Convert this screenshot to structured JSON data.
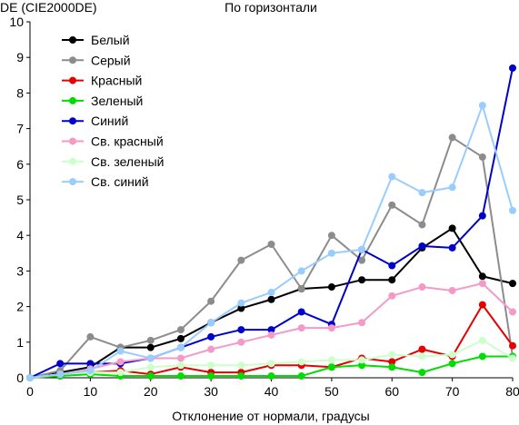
{
  "chart_data": {
    "type": "line",
    "title": "По горизонтали",
    "ylabel": "DE (CIE2000DE)",
    "xlabel": "Отклонение от нормали, градусы",
    "xlim": [
      0,
      80
    ],
    "ylim": [
      0,
      10
    ],
    "xticks": [
      0,
      10,
      20,
      30,
      40,
      50,
      60,
      70,
      80
    ],
    "yticks": [
      0,
      1,
      2,
      3,
      4,
      5,
      6,
      7,
      8,
      9,
      10
    ],
    "grid": false,
    "legend_position": "top-left",
    "x": [
      0,
      5,
      10,
      15,
      20,
      25,
      30,
      35,
      40,
      45,
      50,
      55,
      60,
      65,
      70,
      75,
      80
    ],
    "series": [
      {
        "name": "Белый",
        "color": "#000000",
        "values": [
          0,
          0.15,
          0.3,
          0.85,
          0.85,
          1.1,
          1.55,
          1.95,
          2.2,
          2.5,
          2.55,
          2.75,
          2.75,
          3.65,
          4.2,
          2.85,
          2.65
        ]
      },
      {
        "name": "Серый",
        "color": "#8c8c8c",
        "values": [
          0,
          0.2,
          1.15,
          0.85,
          1.05,
          1.35,
          2.15,
          3.3,
          3.75,
          2.5,
          4.0,
          3.3,
          4.85,
          4.3,
          6.75,
          6.2,
          0.6
        ]
      },
      {
        "name": "Красный",
        "color": "#e60000",
        "values": [
          0,
          0.05,
          0.15,
          0.2,
          0.1,
          0.3,
          0.15,
          0.15,
          0.35,
          0.35,
          0.3,
          0.55,
          0.45,
          0.8,
          0.6,
          2.05,
          0.9
        ]
      },
      {
        "name": "Зеленый",
        "color": "#00dd00",
        "values": [
          0,
          0.05,
          0.1,
          0.05,
          0.05,
          0.05,
          0.05,
          0.05,
          0.05,
          0.05,
          0.3,
          0.35,
          0.3,
          0.15,
          0.4,
          0.6,
          0.6
        ]
      },
      {
        "name": "Синий",
        "color": "#0000cc",
        "values": [
          0,
          0.4,
          0.4,
          0.4,
          0.55,
          0.85,
          1.15,
          1.35,
          1.35,
          1.85,
          1.5,
          3.6,
          3.15,
          3.7,
          3.65,
          4.55,
          8.7
        ]
      },
      {
        "name": "Св. красный",
        "color": "#f39ac8",
        "values": [
          0,
          0.1,
          0.25,
          0.45,
          0.55,
          0.55,
          0.8,
          1.0,
          1.2,
          1.4,
          1.4,
          1.55,
          2.3,
          2.55,
          2.45,
          2.65,
          1.85
        ]
      },
      {
        "name": "Св. зеленый",
        "color": "#ccffcc",
        "values": [
          0,
          0.1,
          0.15,
          0.15,
          0.3,
          0.35,
          0.35,
          0.35,
          0.4,
          0.45,
          0.5,
          0.5,
          0.65,
          0.6,
          0.65,
          1.05,
          0.55
        ]
      },
      {
        "name": "Св. синий",
        "color": "#99ccff",
        "values": [
          0,
          0.1,
          0.2,
          0.75,
          0.55,
          0.85,
          1.55,
          2.1,
          2.4,
          3.0,
          3.5,
          3.6,
          5.65,
          5.2,
          5.35,
          7.65,
          4.7
        ]
      }
    ]
  }
}
